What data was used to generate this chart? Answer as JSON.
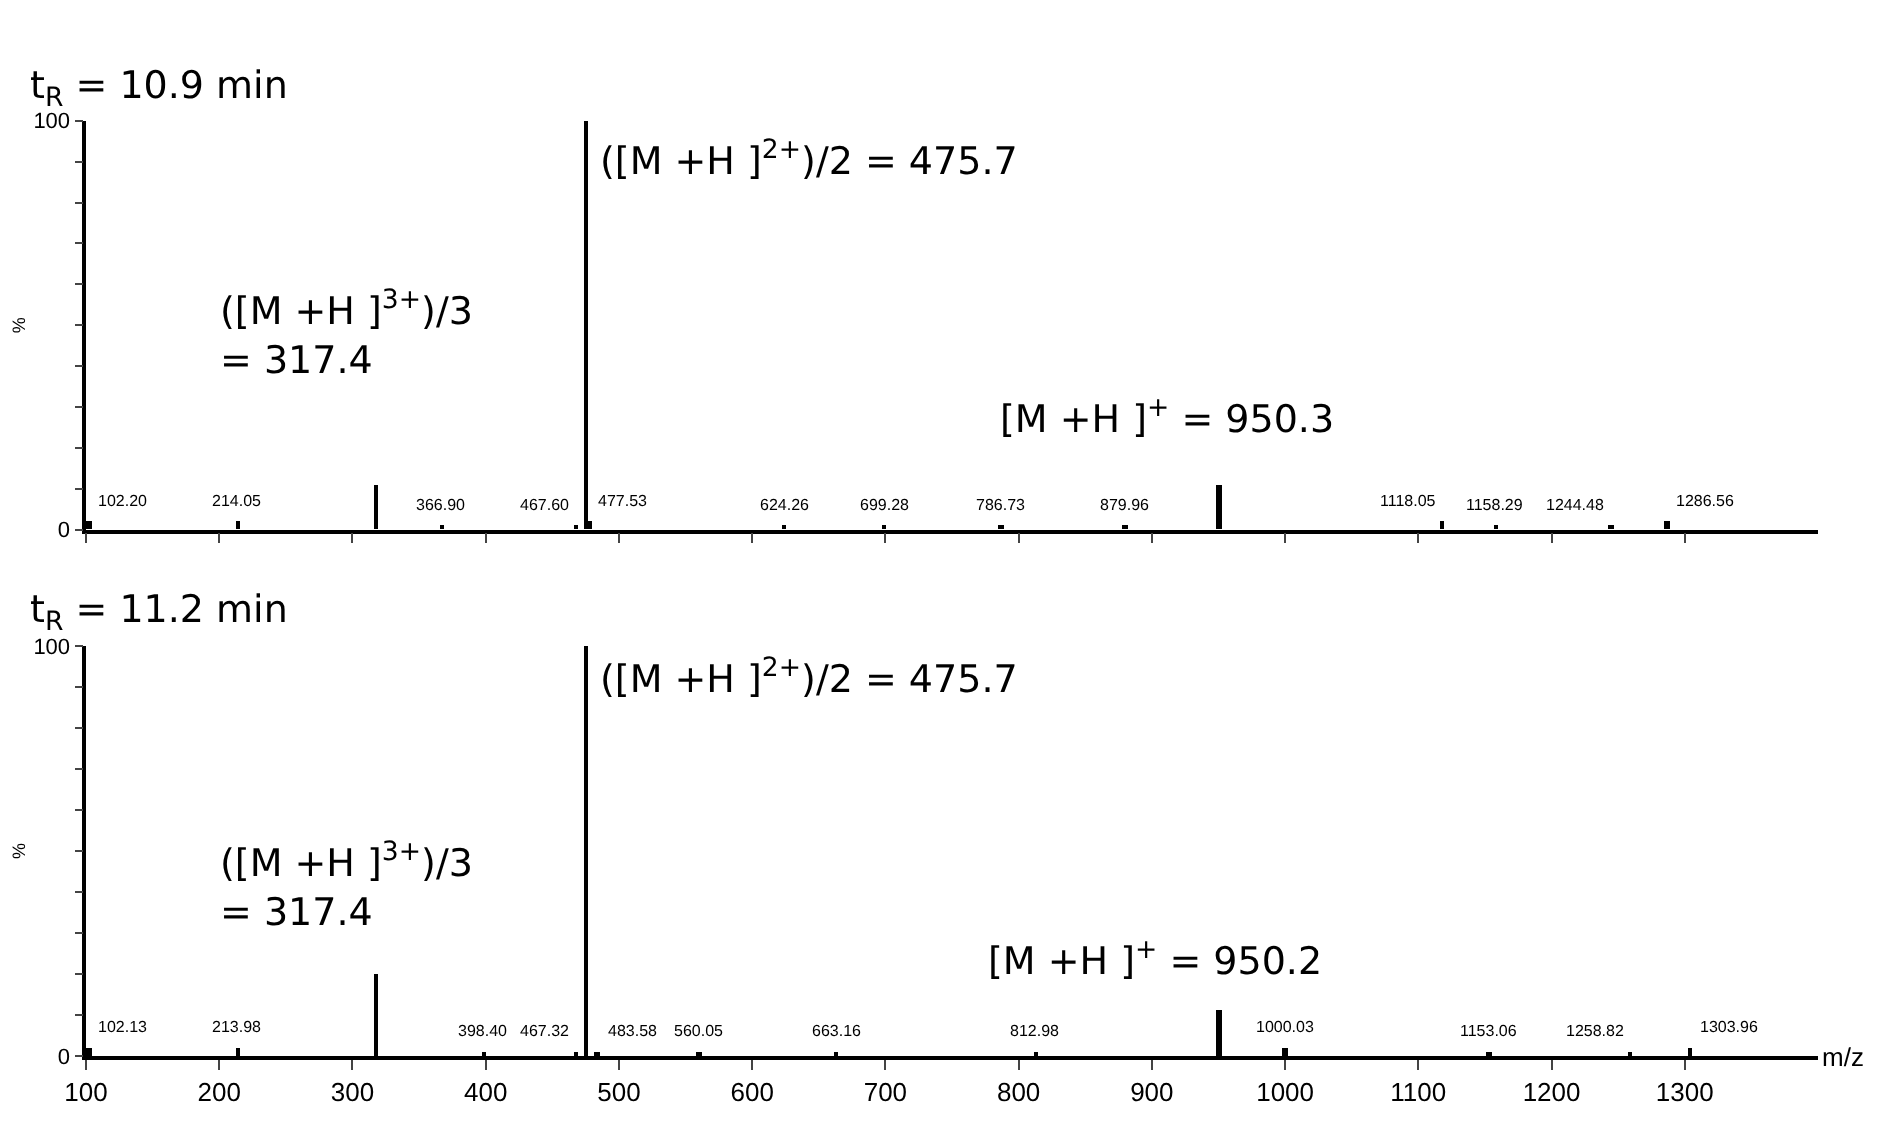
{
  "chart_data": [
    {
      "type": "bar",
      "title": "t$_{R}$ = 10.9 min",
      "ylabel": "%",
      "color": "#000000",
      "x": [
        102.2,
        214.05,
        317.4,
        366.9,
        467.6,
        475.7,
        477.53,
        624.26,
        699.28,
        786.73,
        879.96,
        950.3,
        1118.05,
        1158.29,
        1244.48,
        1286.56
      ],
      "values": [
        2,
        2,
        11,
        1,
        1,
        100,
        2,
        1,
        1,
        1,
        1,
        11,
        2,
        1,
        1,
        2
      ],
      "xlim": [
        100,
        1400
      ],
      "xticks": [
        100,
        200,
        300,
        400,
        500,
        600,
        700,
        800,
        900,
        1000,
        1100,
        1200,
        1300
      ],
      "ylim": [
        0,
        100
      ],
      "yticks": [
        0,
        {
          "value": 10,
          "label": null
        },
        {
          "value": 20,
          "label": null
        },
        {
          "value": 30,
          "label": null
        },
        {
          "value": 40,
          "label": null
        },
        {
          "value": 50,
          "label": null
        },
        {
          "value": 60,
          "label": null
        },
        {
          "value": 70,
          "label": null
        },
        {
          "value": 80,
          "label": null
        },
        {
          "value": 90,
          "label": null
        },
        100
      ],
      "tick_labels": "y",
      "annotations": [
        "([M +H ]$^{2+}$)/2 = 475.7",
        "([M +H ]$^{3+}$)/3\n= 317.4",
        "[M +H ]$^{+}$ = 950.3",
        {
          "text": "102.20",
          "x": 102.2,
          "y": 2
        },
        {
          "text": "214.05",
          "x": 214.05,
          "y": 2
        },
        {
          "text": "366.90",
          "x": 366.9,
          "y": 1
        },
        {
          "text": "467.60",
          "x": 467.6,
          "y": 1
        },
        {
          "text": "477.53",
          "x": 477.53,
          "y": 2
        },
        {
          "text": "624.26",
          "x": 624.26,
          "y": 1
        },
        {
          "text": "699.28",
          "x": 699.28,
          "y": 1
        },
        {
          "text": "786.73",
          "x": 786.73,
          "y": 1
        },
        {
          "text": "879.96",
          "x": 879.96,
          "y": 1
        },
        {
          "text": "1118.05",
          "x": 1118.05,
          "y": 2
        },
        {
          "text": "1158.29",
          "x": 1158.29,
          "y": 1
        },
        {
          "text": "1244.48",
          "x": 1244.48,
          "y": 1
        },
        {
          "text": "1286.56",
          "x": 1286.56,
          "y": 2
        }
      ]
    },
    {
      "type": "bar",
      "title": "t$_{R}$ = 11.2 min",
      "ylabel": "%",
      "xlabel": "m/z",
      "color": "#000000",
      "x": [
        102.13,
        213.98,
        317.4,
        398.4,
        467.32,
        475.7,
        483.58,
        560.05,
        663.16,
        812.98,
        950.2,
        1000.03,
        1153.06,
        1258.82,
        1303.96
      ],
      "values": [
        2,
        2,
        20,
        1,
        1,
        100,
        1,
        1,
        1,
        1,
        11,
        2,
        1,
        1,
        2
      ],
      "xlim": [
        100,
        1400
      ],
      "xticks": [
        100,
        200,
        300,
        400,
        500,
        600,
        700,
        800,
        900,
        1000,
        1100,
        1200,
        1300
      ],
      "ylim": [
        0,
        100
      ],
      "yticks": [
        0,
        {
          "value": 10,
          "label": null
        },
        {
          "value": 20,
          "label": null
        },
        {
          "value": 30,
          "label": null
        },
        {
          "value": 40,
          "label": null
        },
        {
          "value": 50,
          "label": null
        },
        {
          "value": 60,
          "label": null
        },
        {
          "value": 70,
          "label": null
        },
        {
          "value": 80,
          "label": null
        },
        {
          "value": 90,
          "label": null
        },
        100
      ],
      "annotations": [
        "([M +H ]$^{2+}$)/2 = 475.7",
        "([M +H ]$^{3+}$)/3\n= 317.4",
        "[M +H ]$^{+}$ = 950.2",
        {
          "text": "102.13",
          "x": 102.13,
          "y": 2
        },
        {
          "text": "213.98",
          "x": 213.98,
          "y": 2
        },
        {
          "text": "398.40",
          "x": 398.4,
          "y": 1
        },
        {
          "text": "467.32",
          "x": 467.32,
          "y": 1
        },
        {
          "text": "483.58",
          "x": 483.58,
          "y": 1
        },
        {
          "text": "560.05",
          "x": 560.05,
          "y": 1
        },
        {
          "text": "663.16",
          "x": 663.16,
          "y": 1
        },
        {
          "text": "812.98",
          "x": 812.98,
          "y": 1
        },
        {
          "text": "1000.03",
          "x": 1000.03,
          "y": 2
        },
        {
          "text": "1153.06",
          "x": 1153.06,
          "y": 1
        },
        {
          "text": "1258.82",
          "x": 1258.82,
          "y": 1
        },
        {
          "text": "1303.96",
          "x": 1303.96,
          "y": 2
        }
      ]
    }
  ]
}
